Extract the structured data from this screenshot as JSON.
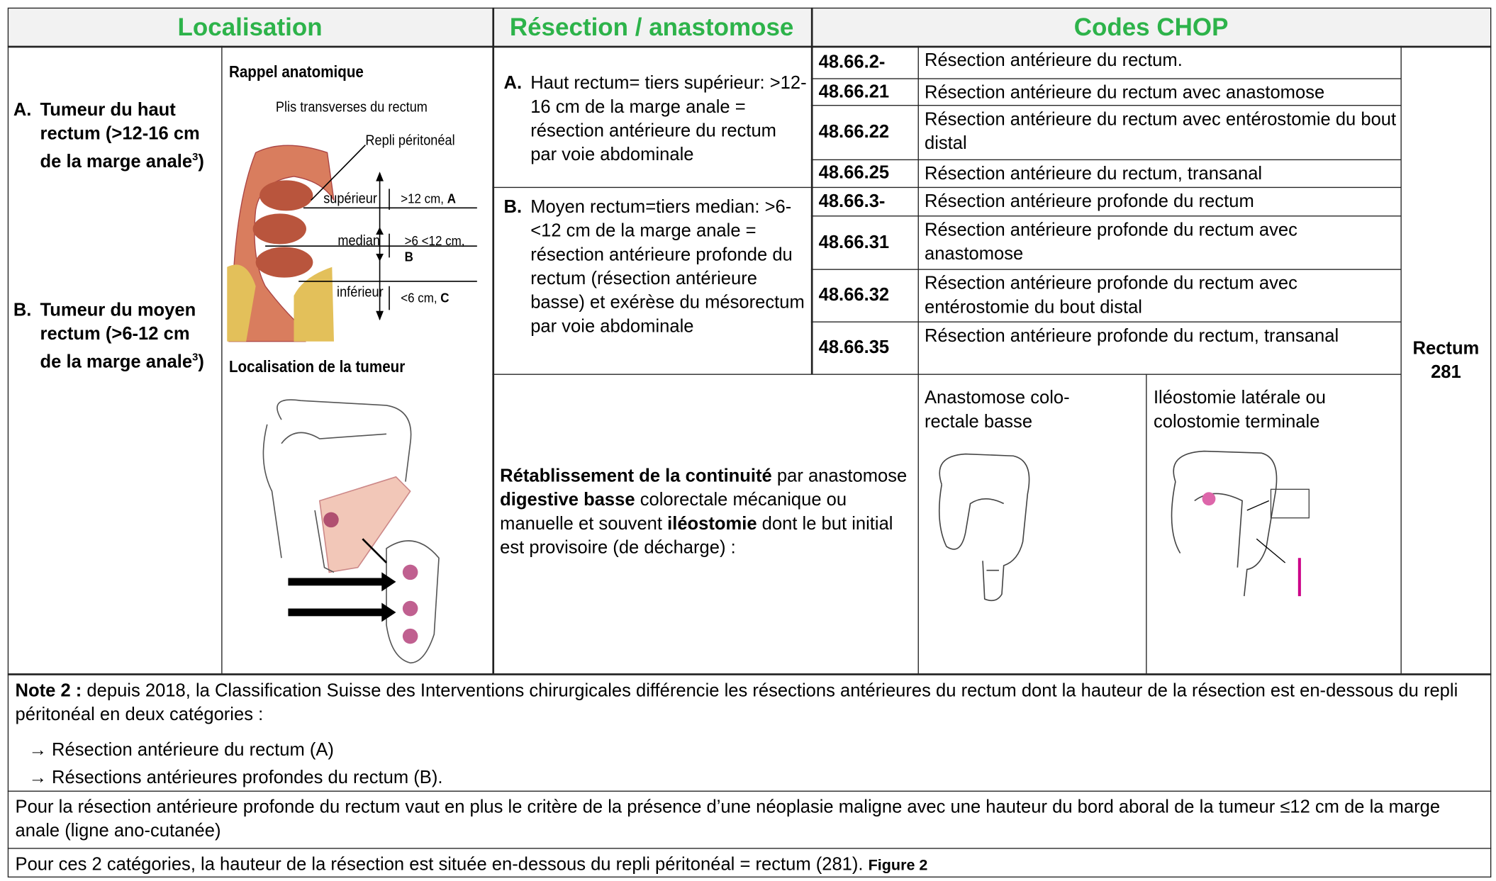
{
  "header": {
    "localisation": "Localisation",
    "resection": "Résection / anastomose",
    "codes": "Codes CHOP"
  },
  "localisation": {
    "a": {
      "label": "A.",
      "text": "Tumeur du haut rectum (>12-16 cm de la marge anale",
      "sup": "3",
      "close": ")"
    },
    "b": {
      "label": "B.",
      "text": "Tumeur du moyen rectum (>6-12 cm de la marge anale",
      "sup": "3",
      "close": ")"
    }
  },
  "anatomy": {
    "title": "Rappel anatomique",
    "subtitle": "Plis transverses du rectum",
    "repli": "Repli péritonéal",
    "levels": [
      {
        "name": "supérieur",
        "range": ">12 cm,",
        "letter": "A"
      },
      {
        "name": "median",
        "range": ">6 <12 cm,",
        "letter": "B"
      },
      {
        "name": "inférieur",
        "range": "<6 cm,",
        "letter": "C"
      }
    ],
    "tumor_title": "Localisation de la tumeur"
  },
  "resection": {
    "a": {
      "label": "A.",
      "text": "Haut rectum= tiers supérieur: >12-16 cm de la marge anale = résection antérieure du rectum par voie abdominale"
    },
    "b": {
      "label": "B.",
      "text": "Moyen rectum=tiers median: >6-<12 cm de la marge anale = résection antérieure profonde du rectum (résection antérieure basse) et exérèse du mésorectum par voie abdominale"
    }
  },
  "codes": [
    {
      "code": "48.66.2-",
      "desc": "Résection antérieure du rectum."
    },
    {
      "code": "48.66.21",
      "desc": "Résection antérieure du rectum avec anastomose"
    },
    {
      "code": "48.66.22",
      "desc": "Résection antérieure du rectum avec entérostomie du bout distal"
    },
    {
      "code": "48.66.25",
      "desc": "Résection antérieure du rectum, transanal"
    },
    {
      "code": "48.66.3-",
      "desc": "Résection antérieure profonde du rectum"
    },
    {
      "code": "48.66.31",
      "desc": "Résection antérieure profonde du rectum avec anastomose"
    },
    {
      "code": "48.66.32",
      "desc": "Résection antérieure profonde du rectum avec entérostomie du bout distal"
    },
    {
      "code": "48.66.35",
      "desc": "Résection antérieure profonde du rectum, transanal"
    }
  ],
  "continuity": [
    {
      "text": "Rétablissement de la continuité",
      "bold": true
    },
    {
      "text": " par anastomose ",
      "bold": false
    },
    {
      "text": "digestive basse",
      "bold": true
    },
    {
      "text": " colorectale mécanique ou manuelle et souvent ",
      "bold": false
    },
    {
      "text": "iléostomie",
      "bold": true
    },
    {
      "text": " dont le but initial est provisoire (de décharge) :",
      "bold": false
    }
  ],
  "illustrations": [
    "Anastomose colo-rectale basse",
    "Iléostomie latérale ou colostomie terminale"
  ],
  "rectum": {
    "label": "Rectum",
    "code": "281"
  },
  "note": {
    "label": "Note 2 :",
    "text": " depuis 2018, la Classification Suisse des Interventions chirurgicales différencie les résections antérieures du rectum dont la hauteur de la résection est en-dessous du repli péritonéal en deux catégories :",
    "items": [
      "→ Résection antérieure du rectum (A)",
      "→ Résections antérieures profondes du rectum (B)."
    ],
    "para2": "Pour la résection antérieure profonde du rectum vaut en plus le critère de la présence d’une néoplasie maligne avec une hauteur du bord aboral de la tumeur ≤12 cm de la marge anale (ligne ano-cutanée)",
    "para3": "Pour ces 2 catégories, la hauteur de la résection est située en-dessous du repli péritonéal = rectum (281). ",
    "figure": "Figure 2"
  }
}
